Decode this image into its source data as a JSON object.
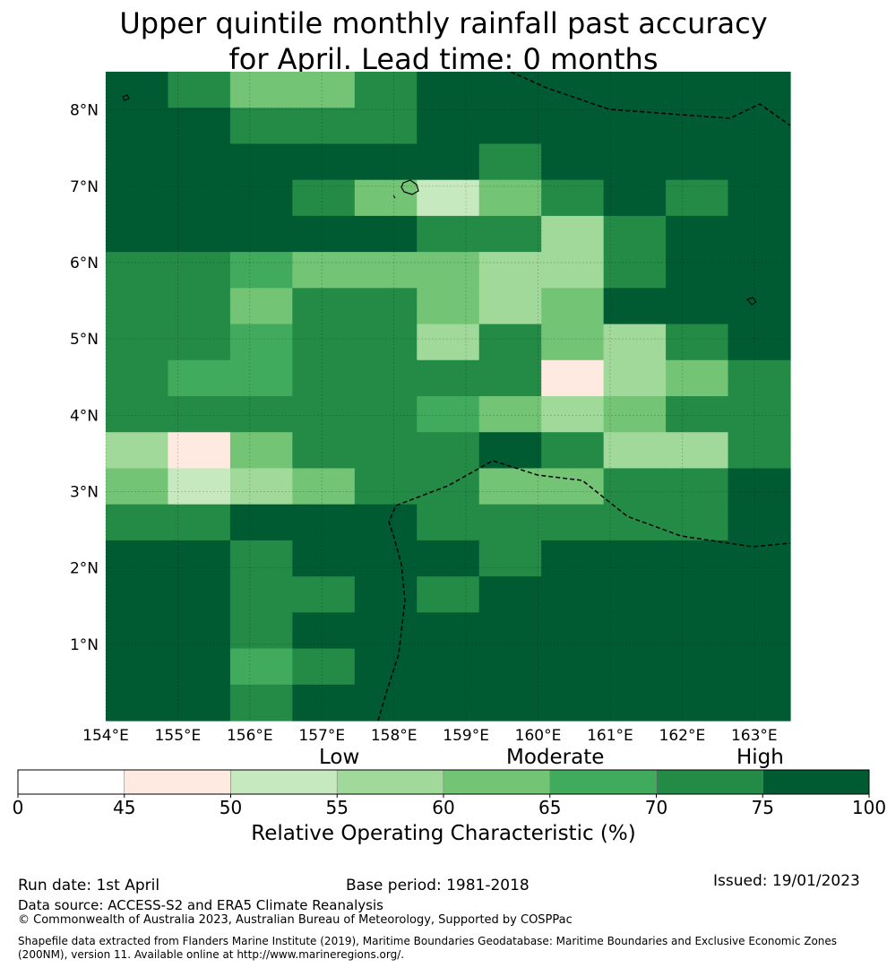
{
  "title": {
    "line1": "Upper quintile monthly rainfall past accuracy",
    "line2": "for April. Lead time: 0 months"
  },
  "map": {
    "lon_ticks": [
      "154°E",
      "155°E",
      "156°E",
      "157°E",
      "158°E",
      "159°E",
      "160°E",
      "161°E",
      "162°E",
      "163°E"
    ],
    "lat_ticks": [
      "8°N",
      "7°N",
      "6°N",
      "5°N",
      "4°N",
      "3°N",
      "2°N",
      "1°N"
    ],
    "lon_values": [
      154,
      155,
      156,
      157,
      158,
      159,
      160,
      161,
      162,
      163
    ],
    "lat_values": [
      8,
      7,
      6,
      5,
      4,
      3,
      2,
      1
    ],
    "lon_range": [
      154,
      163.5
    ],
    "lat_range": [
      0,
      8.5
    ],
    "grid": true,
    "cell_size_degrees": 0.83,
    "grid_rows_note": "rows listed north to south; values are ROC class lower bounds in %",
    "cells": [
      [
        75,
        70,
        60,
        60,
        70,
        75,
        75,
        75,
        75,
        75,
        75
      ],
      [
        75,
        75,
        70,
        70,
        70,
        75,
        75,
        75,
        75,
        75,
        75
      ],
      [
        75,
        75,
        75,
        75,
        75,
        75,
        70,
        75,
        75,
        75,
        75
      ],
      [
        75,
        75,
        75,
        70,
        60,
        50,
        60,
        70,
        75,
        70,
        75
      ],
      [
        75,
        75,
        75,
        75,
        75,
        70,
        70,
        55,
        70,
        75,
        75
      ],
      [
        70,
        70,
        65,
        60,
        60,
        60,
        55,
        55,
        70,
        75,
        75
      ],
      [
        70,
        70,
        60,
        70,
        70,
        60,
        55,
        60,
        75,
        75,
        75
      ],
      [
        70,
        70,
        65,
        70,
        70,
        55,
        70,
        60,
        55,
        70,
        75
      ],
      [
        70,
        65,
        65,
        70,
        70,
        70,
        70,
        45,
        55,
        60,
        70
      ],
      [
        70,
        70,
        70,
        70,
        70,
        65,
        60,
        55,
        60,
        70,
        70
      ],
      [
        55,
        45,
        60,
        70,
        70,
        70,
        75,
        70,
        55,
        55,
        70
      ],
      [
        60,
        50,
        55,
        60,
        70,
        70,
        60,
        60,
        70,
        70,
        75
      ],
      [
        70,
        70,
        75,
        75,
        75,
        70,
        70,
        70,
        70,
        70,
        75
      ],
      [
        75,
        75,
        70,
        75,
        75,
        75,
        70,
        75,
        75,
        75,
        75
      ],
      [
        75,
        75,
        70,
        70,
        75,
        70,
        75,
        75,
        75,
        75,
        75
      ],
      [
        75,
        75,
        70,
        75,
        75,
        75,
        75,
        75,
        75,
        75,
        75
      ],
      [
        75,
        75,
        65,
        70,
        75,
        75,
        75,
        75,
        75,
        75,
        75
      ],
      [
        75,
        75,
        70,
        75,
        75,
        75,
        75,
        75,
        75,
        75,
        75
      ]
    ],
    "boundary_line_style": "dashed",
    "coastline_color": "#000000"
  },
  "colorbar": {
    "levels": [
      "Low",
      "Moderate",
      "High"
    ],
    "tick_labels": [
      "0",
      "45",
      "50",
      "55",
      "60",
      "65",
      "70",
      "75",
      "100"
    ],
    "bins": [
      {
        "from": 0,
        "to": 45,
        "color": "#ffffff"
      },
      {
        "from": 45,
        "to": 50,
        "color": "#feeae0"
      },
      {
        "from": 50,
        "to": 55,
        "color": "#c7e9c0"
      },
      {
        "from": 55,
        "to": 60,
        "color": "#a1d99b"
      },
      {
        "from": 60,
        "to": 65,
        "color": "#74c476"
      },
      {
        "from": 65,
        "to": 70,
        "color": "#41ab5d"
      },
      {
        "from": 70,
        "to": 75,
        "color": "#238b45"
      },
      {
        "from": 75,
        "to": 100,
        "color": "#005a32"
      }
    ],
    "label": "Relative Operating Characteristic (%)"
  },
  "footer": {
    "run_date": "Run date: 1st April",
    "base_period": "Base period: 1981-2018",
    "issued": "Issued: 19/01/2023",
    "data_source": "Data source: ACCESS-S2 and ERA5 Climate Reanalysis",
    "copyright": "© Commonwealth of Australia 2023, Australian Bureau of Meteorology, Supported by COSPPac",
    "shapefile_line1": "Shapefile data extracted from Flanders Marine Institute (2019), Maritime Boundaries Geodatabase: Maritime Boundaries and Exclusive Economic Zones",
    "shapefile_line2": "(200NM), version 11. Available online at http://www.marineregions.org/."
  }
}
